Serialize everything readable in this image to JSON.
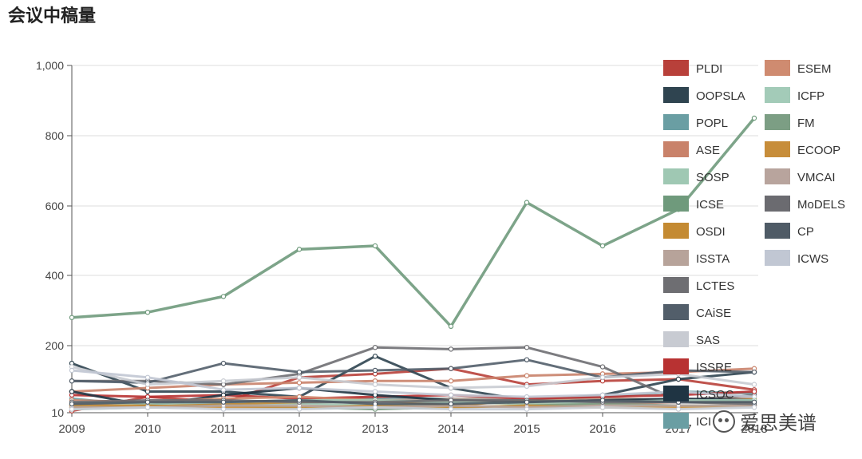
{
  "page": {
    "title": "会议中稿量"
  },
  "watermark": {
    "text": "爱思美谱",
    "icon": "wechat-icon"
  },
  "chart_data": {
    "type": "line",
    "title": "会议中稿量",
    "xlabel": "",
    "ylabel": "",
    "x": [
      "2009",
      "2010",
      "2011",
      "2012",
      "2013",
      "2014",
      "2015",
      "2016",
      "2017",
      "2018"
    ],
    "ylim": [
      10,
      1000
    ],
    "yticks": [
      10,
      200,
      400,
      600,
      800,
      1000
    ],
    "ytick_labels": [
      "10",
      "200",
      "400",
      "600",
      "800",
      "1,000"
    ],
    "grid": true,
    "legend_position": "top-right",
    "series": [
      {
        "name": "PLDI",
        "color": "#b8403a",
        "values": [
          15,
          55,
          40,
          110,
          120,
          135,
          90,
          100,
          105,
          75
        ]
      },
      {
        "name": "OOPSLA",
        "color": "#2f4450",
        "values": [
          150,
          70,
          70,
          55,
          170,
          80,
          45,
          60,
          105,
          125
        ]
      },
      {
        "name": "POPL",
        "color": "#6a9ea3",
        "values": [
          50,
          30,
          35,
          45,
          50,
          50,
          45,
          55,
          70,
          65
        ]
      },
      {
        "name": "ASE",
        "color": "#c9826a",
        "values": [
          70,
          80,
          90,
          95,
          100,
          100,
          115,
          120,
          125,
          135
        ]
      },
      {
        "name": "SOSP",
        "color": "#9fc8b3",
        "values": [
          20,
          25,
          30,
          35,
          30,
          35,
          40,
          40,
          45,
          40
        ]
      },
      {
        "name": "ICSE",
        "color": "#6f9a7c",
        "values": [
          280,
          295,
          340,
          475,
          485,
          255,
          610,
          485,
          590,
          850
        ]
      },
      {
        "name": "OSDI",
        "color": "#c48a32",
        "values": [
          25,
          30,
          35,
          40,
          45,
          30,
          45,
          50,
          45,
          50
        ]
      },
      {
        "name": "ISSTA",
        "color": "#b7a39a",
        "values": [
          35,
          35,
          40,
          45,
          45,
          50,
          50,
          50,
          45,
          55
        ]
      },
      {
        "name": "LCTES",
        "color": "#6e6e72",
        "values": [
          100,
          100,
          90,
          120,
          195,
          190,
          195,
          140,
          45,
          60
        ]
      },
      {
        "name": "CAiSE",
        "color": "#525e6a",
        "values": [
          100,
          95,
          150,
          125,
          130,
          135,
          160,
          110,
          130,
          125
        ]
      },
      {
        "name": "SAS",
        "color": "#c8cbd2",
        "values": [
          140,
          90,
          100,
          110,
          90,
          80,
          85,
          110,
          120,
          90
        ]
      },
      {
        "name": "ISSRE",
        "color": "#b83232",
        "values": [
          60,
          55,
          60,
          50,
          55,
          60,
          50,
          55,
          60,
          70
        ]
      },
      {
        "name": "ICSOC",
        "color": "#1f3443",
        "values": [
          70,
          30,
          60,
          80,
          60,
          45,
          40,
          45,
          50,
          45
        ]
      },
      {
        "name": "ICWS",
        "color": "#c1c7d3",
        "values": [
          130,
          110,
          75,
          80,
          70,
          60,
          55,
          60,
          70,
          55
        ]
      },
      {
        "name": "ESEM",
        "color": "#cf8b70",
        "values": [
          45,
          40,
          50,
          55,
          45,
          40,
          35,
          35,
          40,
          40
        ]
      },
      {
        "name": "ICFP",
        "color": "#a3cbb8",
        "values": [
          40,
          35,
          40,
          45,
          45,
          40,
          35,
          40,
          45,
          45
        ]
      },
      {
        "name": "FM",
        "color": "#7c9e84",
        "values": [
          30,
          25,
          30,
          25,
          20,
          25,
          30,
          35,
          30,
          30
        ]
      },
      {
        "name": "ECOOP",
        "color": "#c78d3a",
        "values": [
          30,
          30,
          25,
          25,
          30,
          25,
          30,
          25,
          25,
          30
        ]
      },
      {
        "name": "VMCAI",
        "color": "#b8a49d",
        "values": [
          25,
          25,
          30,
          30,
          25,
          30,
          25,
          30,
          30,
          30
        ]
      },
      {
        "name": "MoDELS",
        "color": "#6b6b70",
        "values": [
          40,
          45,
          45,
          40,
          40,
          45,
          45,
          40,
          40,
          35
        ]
      },
      {
        "name": "CP",
        "color": "#4f5b66",
        "values": [
          35,
          40,
          40,
          45,
          35,
          35,
          40,
          45,
          40,
          40
        ]
      },
      {
        "name": "ICWS",
        "color": "#c7ccd5",
        "values": [
          20,
          25,
          20,
          20,
          25,
          20,
          20,
          25,
          20,
          25
        ]
      }
    ],
    "legend_visible": [
      "PLDI",
      "OOPSLA",
      "POPL",
      "ASE",
      "SOSP",
      "ICSE",
      "OSDI",
      "ISSTA",
      "LCTES",
      "CAiSE",
      "SAS",
      "ISSRE",
      "ICSOC",
      "ICI",
      "ESEM",
      "ICFP",
      "FM",
      "ECOOP",
      "VMCAI",
      "MoDELS",
      "CP",
      "ICWS"
    ],
    "legend_visible_colors": [
      "#b8403a",
      "#2f4450",
      "#6a9ea3",
      "#c9826a",
      "#9fc8b3",
      "#6f9a7c",
      "#c48a32",
      "#b7a39a",
      "#6e6e72",
      "#525e6a",
      "#c8cbd2",
      "#b83232",
      "#1f3443",
      "#6a9ea3",
      "#cf8b70",
      "#a3cbb8",
      "#7c9e84",
      "#c78d3a",
      "#b8a49d",
      "#6b6b70",
      "#4f5b66",
      "#c1c7d3"
    ]
  }
}
